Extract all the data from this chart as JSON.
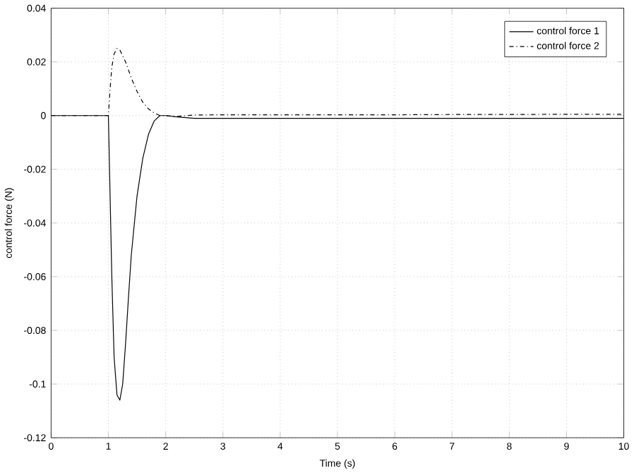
{
  "chart_data": {
    "type": "line",
    "xlabel": "Time (s)",
    "ylabel": "control force (N)",
    "xlim": [
      0,
      10
    ],
    "ylim": [
      -0.12,
      0.04
    ],
    "xticks": [
      0,
      1,
      2,
      3,
      4,
      5,
      6,
      7,
      8,
      9,
      10
    ],
    "yticks": [
      -0.12,
      -0.1,
      -0.08,
      -0.06,
      -0.04,
      -0.02,
      0,
      0.02,
      0.04
    ],
    "grid": true,
    "legend": "top right",
    "series": [
      {
        "name": "control force 1",
        "color": "#000000",
        "line_style": "solid",
        "x": [
          0,
          0.5,
          1,
          1.03,
          1.06,
          1.1,
          1.15,
          1.2,
          1.25,
          1.3,
          1.35,
          1.4,
          1.5,
          1.6,
          1.7,
          1.8,
          1.9,
          2.0,
          2.2,
          2.5,
          3,
          4,
          5,
          6,
          7,
          8,
          9,
          10
        ],
        "values": [
          0,
          0,
          0,
          -0.03,
          -0.06,
          -0.09,
          -0.104,
          -0.106,
          -0.1,
          -0.085,
          -0.068,
          -0.052,
          -0.03,
          -0.016,
          -0.007,
          -0.002,
          0,
          0,
          -0.0005,
          -0.001,
          -0.001,
          -0.001,
          -0.001,
          -0.001,
          -0.001,
          -0.001,
          -0.001,
          -0.001
        ]
      },
      {
        "name": "control force 2",
        "color": "#000000",
        "line_style": "dashdot",
        "x": [
          0,
          0.5,
          1,
          1.03,
          1.06,
          1.1,
          1.15,
          1.2,
          1.3,
          1.4,
          1.5,
          1.6,
          1.7,
          1.8,
          1.9,
          2.0,
          2.2,
          2.5,
          3,
          4,
          5,
          6,
          7,
          8,
          9,
          10
        ],
        "values": [
          0,
          0,
          0,
          0.01,
          0.018,
          0.023,
          0.025,
          0.0245,
          0.02,
          0.014,
          0.009,
          0.005,
          0.0025,
          0.001,
          0,
          0,
          -0.0003,
          0.0002,
          0.0003,
          0.0003,
          0.0003,
          0.0003,
          0.0004,
          0.0004,
          0.0005,
          0.0005
        ]
      }
    ]
  }
}
